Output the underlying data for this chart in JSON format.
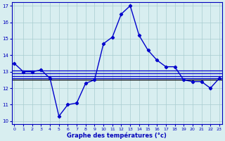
{
  "hours": [
    0,
    1,
    2,
    3,
    4,
    5,
    6,
    7,
    8,
    9,
    10,
    11,
    12,
    13,
    14,
    15,
    16,
    17,
    18,
    19,
    20,
    21,
    22,
    23
  ],
  "temp_main": [
    13.5,
    13.0,
    13.0,
    13.1,
    12.6,
    10.3,
    11.0,
    11.1,
    12.3,
    12.5,
    14.7,
    15.1,
    16.5,
    17.0,
    15.2,
    14.3,
    13.7,
    13.3,
    13.3,
    12.5,
    12.4,
    12.4,
    12.0,
    12.6
  ],
  "ref_lines_blue": [
    13.05,
    12.9,
    12.75,
    12.6
  ],
  "ref_line_black_y": 12.5,
  "bg_color": "#d8eef0",
  "grid_color": "#a8ccd0",
  "line_color": "#0000cc",
  "black_line_color": "#000080",
  "axis_color": "#0000bb",
  "xlabel": "Graphe des températures (°c)",
  "ylim": [
    9.8,
    17.2
  ],
  "yticks": [
    10,
    11,
    12,
    13,
    14,
    15,
    16,
    17
  ],
  "xticks": [
    0,
    1,
    2,
    3,
    4,
    5,
    6,
    7,
    8,
    9,
    10,
    11,
    12,
    13,
    14,
    15,
    16,
    17,
    18,
    19,
    20,
    21,
    22,
    23
  ]
}
